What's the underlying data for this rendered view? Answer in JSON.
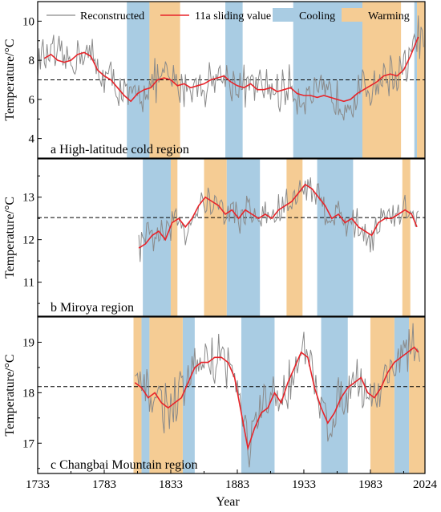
{
  "chart_data": {
    "type": "line",
    "xlabel": "Year",
    "xticks": [
      1733,
      1783,
      1833,
      1883,
      1933,
      1983,
      2024
    ],
    "xlim": [
      1733,
      2024
    ],
    "colors": {
      "reconstructed": "#8a8a8a",
      "sliding": "#e8242a",
      "cooling": "#a9cce3",
      "warming": "#f5cc94",
      "mean_line": "#333333"
    },
    "legend": {
      "reconstructed": "Reconstructed",
      "sliding": "11a sliding value",
      "cooling": "Cooling",
      "warming": "Warming"
    },
    "panels": [
      {
        "label": "a High-latitude cold region",
        "ylabel": "Temperature/°C",
        "ylim": [
          3,
          11
        ],
        "yticks": [
          4,
          6,
          8,
          10
        ],
        "mean": 7.0,
        "cooling": [
          [
            1800,
            1817
          ],
          [
            1874,
            1887
          ],
          [
            1925,
            1977
          ],
          [
            2016,
            2018
          ]
        ],
        "warming": [
          [
            1817,
            1840
          ],
          [
            1977,
            2006
          ],
          [
            2018,
            2024
          ]
        ],
        "sliding": {
          "x": [
            1738,
            1743,
            1748,
            1753,
            1758,
            1763,
            1768,
            1773,
            1778,
            1783,
            1788,
            1793,
            1798,
            1803,
            1808,
            1813,
            1818,
            1823,
            1828,
            1833,
            1838,
            1843,
            1848,
            1853,
            1858,
            1863,
            1868,
            1873,
            1878,
            1883,
            1888,
            1893,
            1898,
            1903,
            1908,
            1913,
            1918,
            1923,
            1928,
            1933,
            1938,
            1943,
            1948,
            1953,
            1958,
            1963,
            1968,
            1973,
            1978,
            1983,
            1988,
            1993,
            1998,
            2003,
            2008,
            2013,
            2019
          ],
          "y": [
            8.1,
            8.3,
            8.0,
            7.9,
            8.0,
            8.3,
            8.4,
            8.2,
            7.5,
            7.2,
            7.0,
            6.6,
            6.2,
            5.9,
            6.3,
            6.5,
            6.6,
            7.0,
            7.1,
            7.0,
            6.7,
            6.8,
            6.6,
            6.7,
            6.8,
            7.0,
            7.1,
            7.2,
            6.9,
            6.7,
            6.6,
            6.8,
            6.5,
            6.5,
            6.6,
            6.4,
            6.5,
            6.6,
            6.3,
            6.2,
            6.2,
            6.1,
            6.2,
            6.1,
            6.0,
            5.9,
            6.0,
            6.3,
            6.5,
            6.7,
            6.9,
            7.2,
            7.3,
            7.2,
            7.5,
            8.2,
            9.2
          ]
        }
      },
      {
        "label": "b Miroya region",
        "ylabel": "Temperature/°C",
        "ylim": [
          10.2,
          13.9
        ],
        "yticks": [
          11,
          12,
          13
        ],
        "mean": 12.52,
        "cooling": [
          [
            1812,
            1833
          ],
          [
            1875,
            1900
          ],
          [
            1943,
            1970
          ]
        ],
        "warming": [
          [
            1833,
            1838
          ],
          [
            1858,
            1875
          ],
          [
            1920,
            1932
          ],
          [
            2007,
            2013
          ]
        ],
        "sliding": {
          "x": [
            1809,
            1814,
            1819,
            1824,
            1829,
            1834,
            1839,
            1844,
            1849,
            1854,
            1859,
            1864,
            1869,
            1874,
            1879,
            1884,
            1889,
            1894,
            1899,
            1904,
            1909,
            1914,
            1919,
            1924,
            1929,
            1934,
            1939,
            1944,
            1949,
            1954,
            1959,
            1964,
            1969,
            1974,
            1979,
            1984,
            1989,
            1994,
            1999,
            2004,
            2009,
            2014,
            2018
          ],
          "y": [
            11.8,
            11.9,
            12.1,
            12.2,
            12.0,
            12.4,
            12.5,
            12.3,
            12.5,
            12.8,
            13.0,
            12.9,
            12.8,
            12.6,
            12.7,
            12.5,
            12.7,
            12.6,
            12.5,
            12.6,
            12.5,
            12.7,
            12.8,
            12.9,
            13.1,
            13.3,
            13.2,
            13.0,
            12.8,
            12.5,
            12.6,
            12.4,
            12.5,
            12.3,
            12.2,
            12.1,
            12.4,
            12.5,
            12.5,
            12.6,
            12.7,
            12.6,
            12.3
          ]
        }
      },
      {
        "label": "c Changbai Mountain region",
        "ylabel": "Temperature/°C",
        "ylim": [
          16.4,
          19.5
        ],
        "yticks": [
          17,
          18,
          19
        ],
        "mean": 18.12,
        "cooling": [
          [
            1811,
            1817
          ],
          [
            1842,
            1851
          ],
          [
            1886,
            1911
          ],
          [
            1946,
            1966
          ],
          [
            2001,
            2012
          ]
        ],
        "warming": [
          [
            1805,
            1811
          ],
          [
            1817,
            1842
          ],
          [
            1983,
            2001
          ],
          [
            2012,
            2024
          ]
        ],
        "sliding": {
          "x": [
            1806,
            1811,
            1816,
            1821,
            1826,
            1831,
            1836,
            1841,
            1846,
            1851,
            1856,
            1861,
            1866,
            1871,
            1876,
            1881,
            1886,
            1891,
            1896,
            1901,
            1906,
            1911,
            1916,
            1921,
            1926,
            1931,
            1936,
            1941,
            1946,
            1951,
            1956,
            1961,
            1966,
            1971,
            1976,
            1981,
            1986,
            1991,
            1996,
            2001,
            2006,
            2011,
            2016,
            2019
          ],
          "y": [
            18.2,
            18.1,
            17.9,
            18.0,
            17.8,
            17.7,
            17.8,
            17.9,
            18.2,
            18.5,
            18.6,
            18.6,
            18.7,
            18.7,
            18.6,
            18.3,
            17.6,
            16.9,
            17.3,
            17.6,
            17.7,
            18.0,
            17.8,
            18.2,
            18.5,
            18.8,
            18.7,
            18.1,
            17.7,
            17.4,
            17.6,
            17.9,
            18.1,
            18.2,
            18.3,
            18.0,
            17.9,
            18.1,
            18.4,
            18.6,
            18.7,
            18.8,
            18.9,
            18.8
          ]
        }
      }
    ]
  }
}
